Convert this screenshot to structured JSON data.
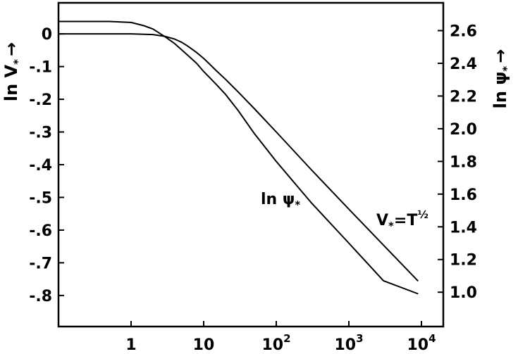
{
  "chart_data": {
    "type": "line",
    "x_scale": "log",
    "x_ticks": [
      {
        "value": 1,
        "label": "1"
      },
      {
        "value": 10,
        "label": "10"
      },
      {
        "value": 100,
        "label": "10",
        "exp": "2"
      },
      {
        "value": 1000,
        "label": "10",
        "exp": "3"
      },
      {
        "value": 10000,
        "label": "10",
        "exp": "4"
      }
    ],
    "xlim": [
      0.1,
      20000
    ],
    "y_left": {
      "label": "ln V",
      "label_sub": "*",
      "label_arrow": "→",
      "ticks": [
        "0",
        "-.1",
        "-.2",
        "-.3",
        "-.4",
        "-.5",
        "-.6",
        "-.7",
        "-.8"
      ],
      "tick_values": [
        0,
        -0.1,
        -0.2,
        -0.3,
        -0.4,
        -0.5,
        -0.6,
        -0.7,
        -0.8
      ],
      "ylim": [
        -0.895,
        0.095
      ]
    },
    "y_right": {
      "label": "ln ψ",
      "label_sub": "*",
      "label_arrow": "→",
      "ticks": [
        "2.6",
        "2.4",
        "2.2",
        "2.0",
        "1.8",
        "1.6",
        "1.4",
        "1.2",
        "1.0"
      ],
      "tick_values": [
        2.6,
        2.4,
        2.2,
        2.0,
        1.8,
        1.6,
        1.4,
        1.2,
        1.0
      ],
      "ylim": [
        0.79,
        2.77
      ]
    },
    "series": [
      {
        "axis": "left",
        "x": [
          0.1,
          0.5,
          1,
          2,
          3,
          4,
          5,
          6,
          8,
          10,
          12,
          15,
          20,
          30,
          50,
          100,
          300,
          1000,
          3000,
          9000
        ],
        "y": [
          0,
          0,
          0,
          -0.002,
          -0.008,
          -0.016,
          -0.026,
          -0.037,
          -0.057,
          -0.075,
          -0.092,
          -0.113,
          -0.139,
          -0.178,
          -0.229,
          -0.3,
          -0.414,
          -0.536,
          -0.646,
          -0.756
        ]
      },
      {
        "axis": "right",
        "x": [
          0.1,
          0.5,
          1,
          1.5,
          2,
          3,
          4,
          6,
          8,
          10,
          15,
          20,
          30,
          50,
          100,
          300,
          1000,
          3000,
          9000
        ],
        "y": [
          2.656,
          2.656,
          2.65,
          2.63,
          2.61,
          2.56,
          2.52,
          2.45,
          2.4,
          2.35,
          2.27,
          2.21,
          2.11,
          1.97,
          1.8,
          1.55,
          1.3,
          1.07,
          0.99
        ]
      }
    ],
    "annotations": [
      {
        "text": "ln ψ",
        "sub": "*"
      },
      {
        "text": "V",
        "sub": "*",
        "mid": "=T",
        "exp": "½"
      }
    ]
  }
}
